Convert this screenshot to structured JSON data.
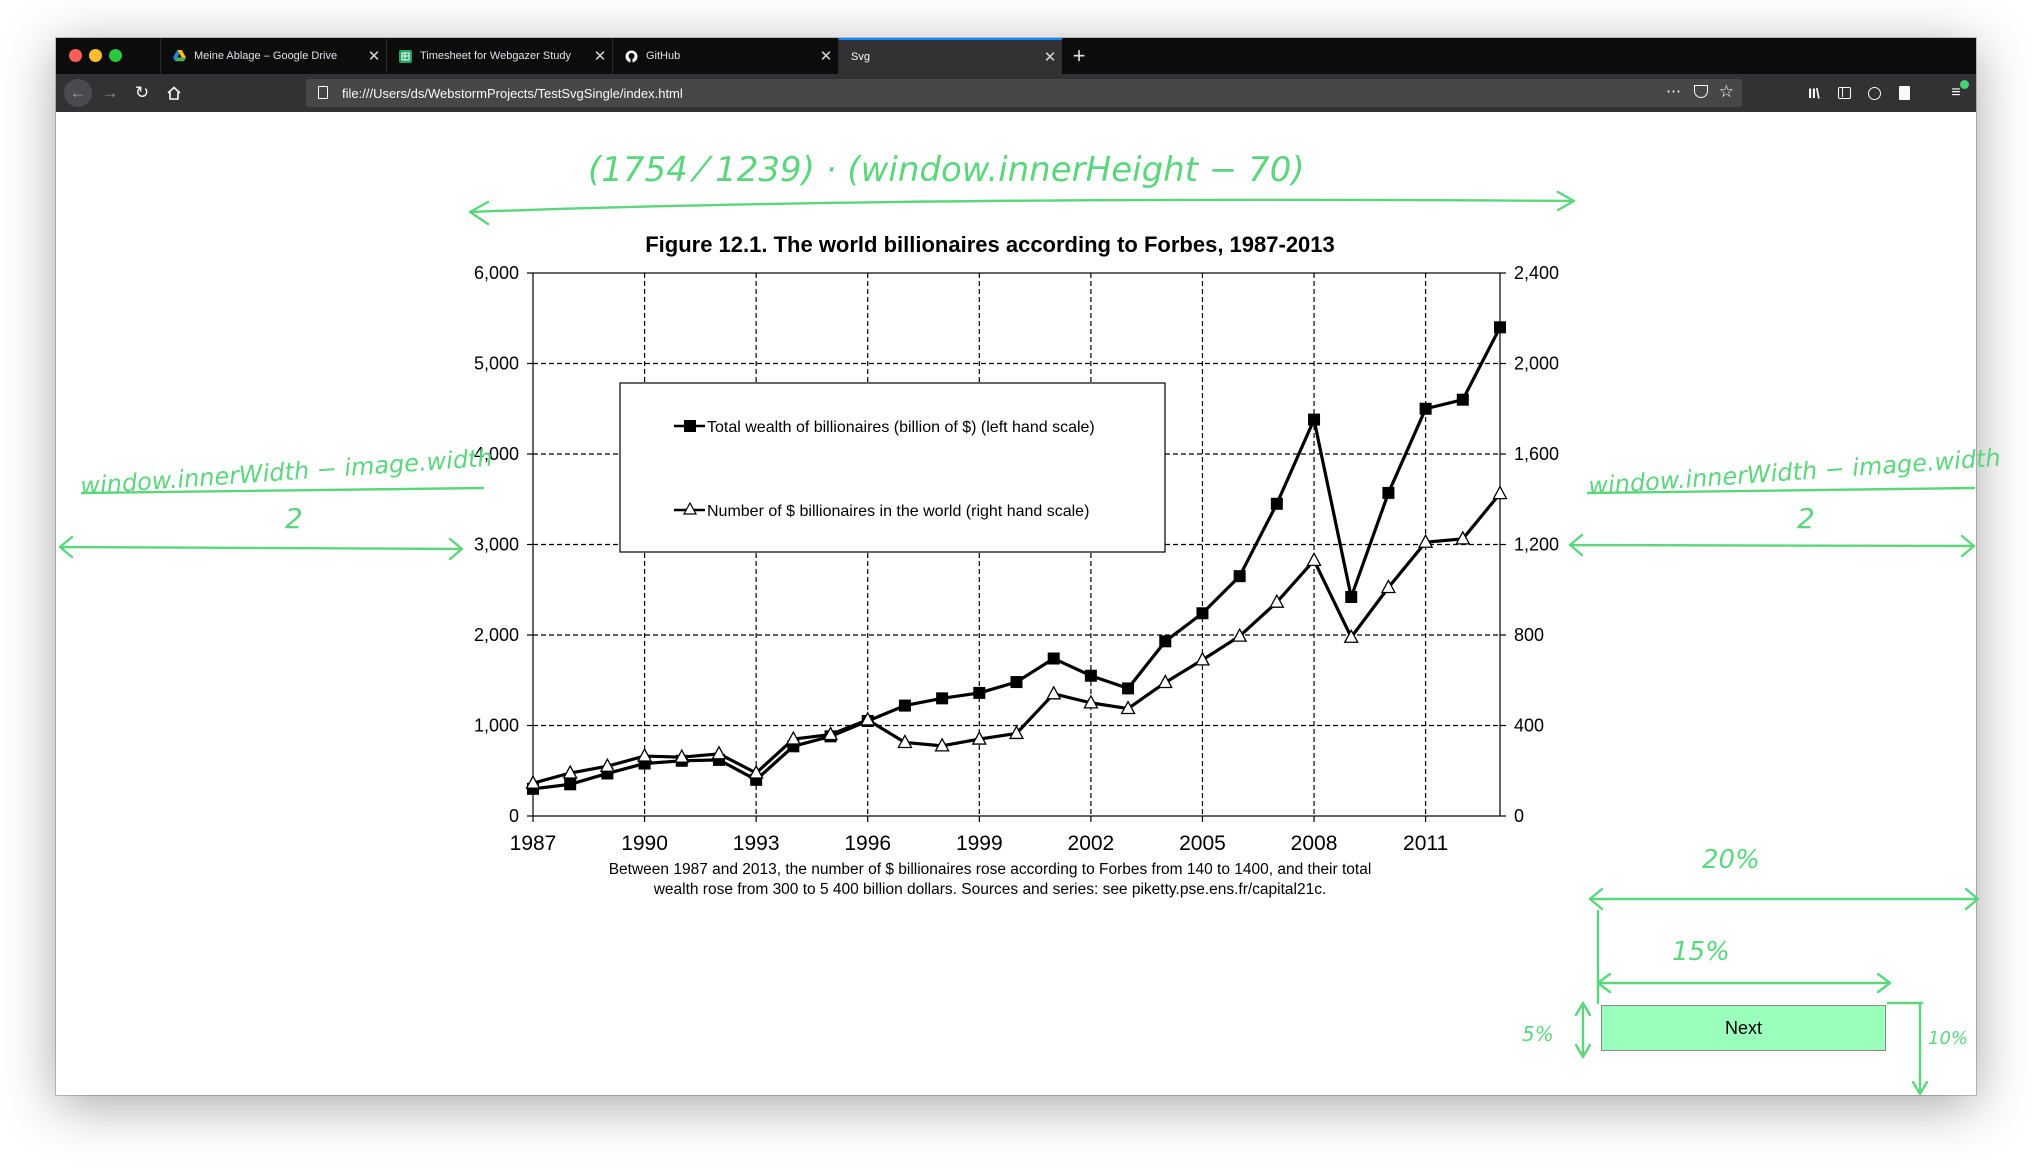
{
  "browser": {
    "tabs": [
      {
        "label": "Meine Ablage – Google Drive",
        "icon": "google-drive-icon"
      },
      {
        "label": "Timesheet for Webgazer Study",
        "icon": "google-sheets-icon"
      },
      {
        "label": "GitHub",
        "icon": "github-icon"
      },
      {
        "label": "Svg",
        "icon": "none",
        "active": true
      }
    ],
    "new_tab": "+",
    "url": "file:///Users/ds/WebstormProjects/TestSvgSingle/index.html"
  },
  "page": {
    "next_button": "Next",
    "caption_line1": "Between 1987 and 2013, the number of $ billionaires rose according to Forbes from 140 to 1400, and their total",
    "caption_line2": "wealth rose from 300 to 5 400 billion dollars. Sources and series: see piketty.pse.ens.fr/capital21c."
  },
  "annotations": {
    "top_formula": "(1754 ⁄ 1239) · (window.innerHeight − 70)",
    "left_numerator": "window.innerWidth − image.width",
    "left_denominator": "2",
    "right_numerator": "window.innerWidth − image.width",
    "right_denominator": "2",
    "width_20": "20%",
    "width_15": "15%",
    "height_5": "5%",
    "height_10": "10%"
  },
  "colors": {
    "annotation": "#5bd67c",
    "button": "#99ffbb"
  },
  "chart_data": {
    "type": "line",
    "title": "Figure 12.1. The world billionaires according to Forbes, 1987-2013",
    "xlabel": "",
    "ylabel": "",
    "x": [
      1987,
      1988,
      1989,
      1990,
      1991,
      1992,
      1993,
      1994,
      1995,
      1996,
      1997,
      1998,
      1999,
      2000,
      2001,
      2002,
      2003,
      2004,
      2005,
      2006,
      2007,
      2008,
      2009,
      2010,
      2011,
      2012,
      2013
    ],
    "x_ticks": [
      "1987",
      "1990",
      "1993",
      "1996",
      "1999",
      "2002",
      "2005",
      "2008",
      "2011"
    ],
    "xlim": [
      1987,
      2013
    ],
    "y_left_ticks": [
      "0",
      "1,000",
      "2,000",
      "3,000",
      "4,000",
      "5,000",
      "6,000"
    ],
    "y_right_ticks": [
      "0",
      "400",
      "800",
      "1,200",
      "1,600",
      "2,000",
      "2,400"
    ],
    "ylim_left": [
      0,
      6000
    ],
    "ylim_right": [
      0,
      2400
    ],
    "grid": true,
    "legend_position": "upper-left-inside",
    "series": [
      {
        "name": "Total wealth of billionaires (billion of $) (left hand scale)",
        "axis": "left",
        "marker": "filled-square",
        "values": [
          300,
          350,
          470,
          580,
          610,
          620,
          400,
          770,
          880,
          1050,
          1220,
          1300,
          1360,
          1480,
          1740,
          1550,
          1410,
          1930,
          2240,
          2650,
          3450,
          4380,
          2420,
          3570,
          4500,
          4600,
          5400
        ]
      },
      {
        "name": "Number of $ billionaires in the world (right hand scale)",
        "axis": "right",
        "marker": "open-triangle",
        "values": [
          145,
          190,
          220,
          265,
          260,
          275,
          190,
          340,
          360,
          425,
          325,
          310,
          340,
          365,
          540,
          500,
          475,
          590,
          690,
          795,
          945,
          1130,
          790,
          1010,
          1210,
          1225,
          1425
        ]
      }
    ]
  }
}
